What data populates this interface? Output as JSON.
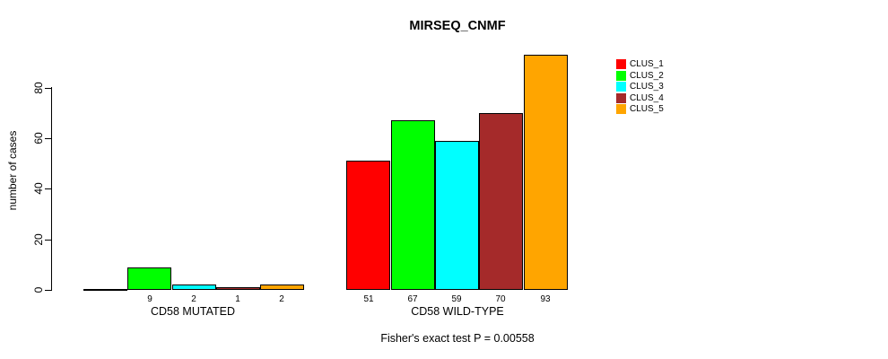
{
  "title": "MIRSEQ_CNMF",
  "footer": "Fisher's exact test P = 0.00558",
  "chart_data": {
    "type": "bar",
    "title": "MIRSEQ_CNMF",
    "xlabel": "",
    "ylabel": "number of cases",
    "ylim": [
      0,
      93
    ],
    "yticks": [
      0,
      20,
      40,
      60,
      80
    ],
    "grid": false,
    "legend_position": "right",
    "categories": [
      "CD58 MUTATED",
      "CD58 WILD-TYPE"
    ],
    "series": [
      {
        "name": "CLUS_1",
        "color": "#FF0000",
        "values": [
          0,
          51
        ]
      },
      {
        "name": "CLUS_2",
        "color": "#00FF00",
        "values": [
          9,
          67
        ]
      },
      {
        "name": "CLUS_3",
        "color": "#00FFFF",
        "values": [
          2,
          59
        ]
      },
      {
        "name": "CLUS_4",
        "color": "#A52A2A",
        "values": [
          1,
          70
        ]
      },
      {
        "name": "CLUS_5",
        "color": "#FFA500",
        "values": [
          2,
          93
        ]
      }
    ],
    "bar_labels": [
      [
        "",
        "9",
        "2",
        "1",
        "2"
      ],
      [
        "51",
        "67",
        "59",
        "70",
        "93"
      ]
    ],
    "annotation": "Fisher's exact test P = 0.00558"
  }
}
